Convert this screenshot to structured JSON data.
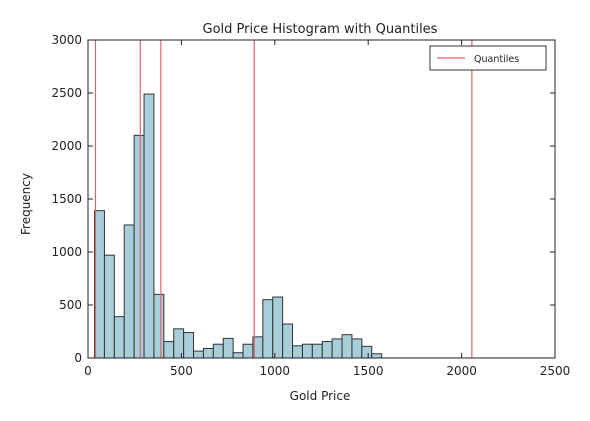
{
  "chart_data": {
    "type": "bar",
    "title": "Gold Price Histogram with Quantiles",
    "xlabel": "Gold Price",
    "ylabel": "Frequency",
    "xlim": [
      0,
      2500
    ],
    "ylim": [
      0,
      3000
    ],
    "xticks": [
      0,
      500,
      1000,
      1500,
      2000,
      2500
    ],
    "xtick_labels": [
      "0",
      "500",
      "1000",
      "1500",
      "2000",
      "2500"
    ],
    "yticks": [
      0,
      500,
      1000,
      1500,
      2000,
      2500,
      3000
    ],
    "ytick_labels": [
      "0",
      "500",
      "1000",
      "1500",
      "2000",
      "2500",
      "3000"
    ],
    "grid": false,
    "bar_color": "#a8cfd9",
    "bar_edge_color": "#333333",
    "bins": {
      "start": 35,
      "width": 53,
      "values": [
        1390,
        970,
        390,
        1255,
        2100,
        2490,
        600,
        155,
        275,
        240,
        65,
        90,
        130,
        185,
        50,
        130,
        200,
        550,
        575,
        320,
        115,
        130,
        130,
        155,
        180,
        220,
        180,
        110,
        40
      ]
    },
    "quantiles": {
      "name": "Quantiles",
      "color": "#e06666",
      "x": [
        40,
        280,
        390,
        890,
        2055
      ]
    },
    "legend": {
      "placement": "top-right",
      "entries": [
        "Quantiles"
      ]
    }
  }
}
